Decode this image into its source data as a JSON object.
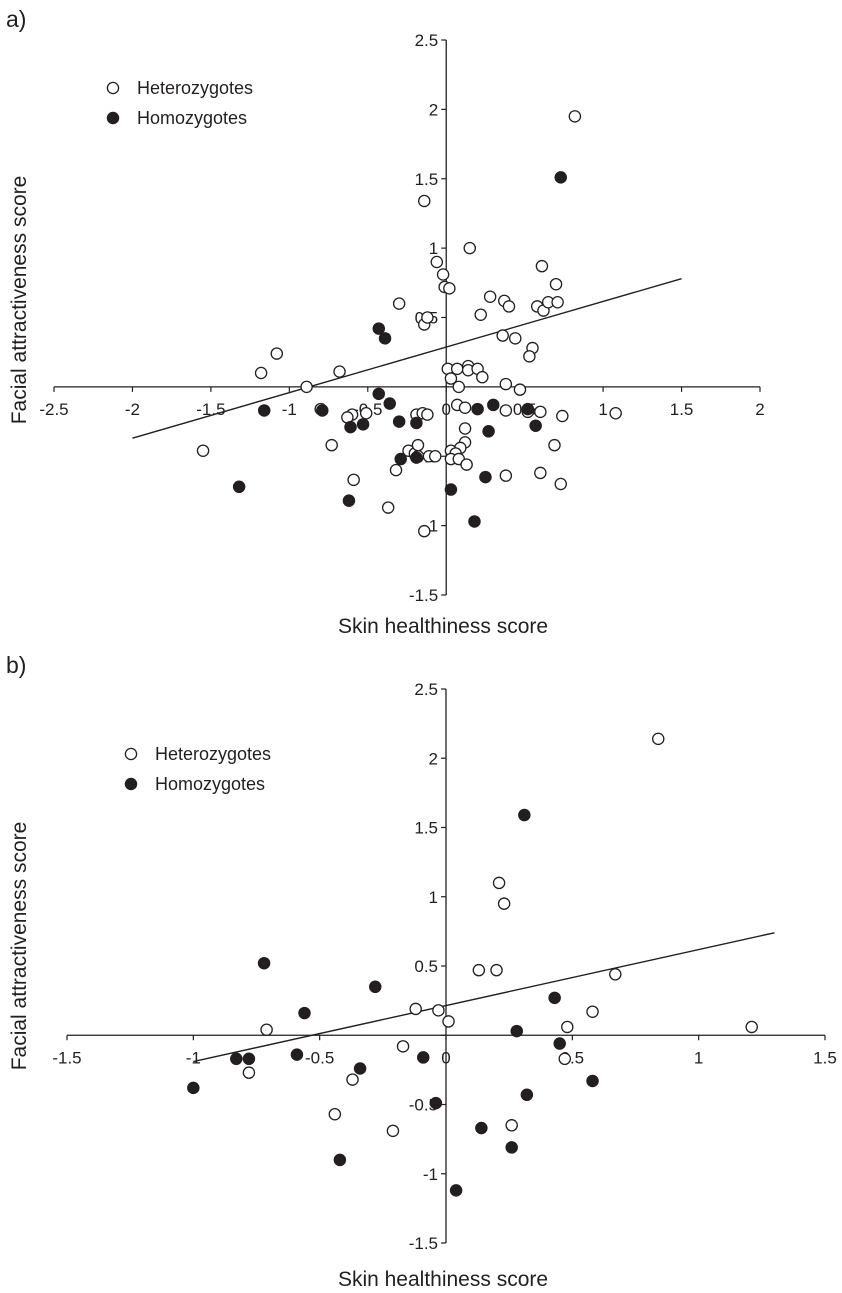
{
  "chart_data": [
    {
      "panel_label": "a)",
      "type": "scatter",
      "xlabel": "Skin healthiness score",
      "ylabel": "Facial attractiveness score",
      "xlim": [
        -2.5,
        2
      ],
      "ylim": [
        -1.5,
        2.5
      ],
      "x_ticks": [
        "-2.5",
        "-2",
        "-1.5",
        "-1",
        "-0.5",
        "0",
        "0.5",
        "1",
        "1.5",
        "2"
      ],
      "y_ticks": [
        "2.5",
        "2",
        "1.5",
        "1",
        "0.5",
        "0",
        "-0.5",
        "-1",
        "-1.5"
      ],
      "x_tick_values": [
        -2.5,
        -2,
        -1.5,
        -1,
        -0.5,
        0,
        0.5,
        1,
        1.5,
        2
      ],
      "y_tick_values": [
        2.5,
        2,
        1.5,
        1,
        0.5,
        0,
        -0.5,
        -1,
        -1.5
      ],
      "grid": false,
      "legend_position": "top-left",
      "trendline": {
        "x": [
          -2,
          1.5
        ],
        "y": [
          -0.37,
          0.78
        ]
      },
      "series": [
        {
          "name": "Heterozygotes",
          "marker": "open-circle",
          "color": "#231f20",
          "points": [
            [
              0.82,
              1.95
            ],
            [
              -0.14,
              1.34
            ],
            [
              0.15,
              1.0
            ],
            [
              -0.06,
              0.9
            ],
            [
              -0.02,
              0.81
            ],
            [
              0.61,
              0.87
            ],
            [
              -0.01,
              0.72
            ],
            [
              0.02,
              0.71
            ],
            [
              0.7,
              0.74
            ],
            [
              -0.3,
              0.6
            ],
            [
              0.28,
              0.65
            ],
            [
              0.37,
              0.62
            ],
            [
              0.4,
              0.58
            ],
            [
              0.58,
              0.58
            ],
            [
              0.62,
              0.55
            ],
            [
              0.65,
              0.61
            ],
            [
              0.71,
              0.61
            ],
            [
              0.22,
              0.52
            ],
            [
              -0.14,
              0.45
            ],
            [
              -0.12,
              0.5
            ],
            [
              0.36,
              0.37
            ],
            [
              0.44,
              0.35
            ],
            [
              0.55,
              0.28
            ],
            [
              0.53,
              0.22
            ],
            [
              -1.08,
              0.24
            ],
            [
              -1.18,
              0.1
            ],
            [
              -0.68,
              0.11
            ],
            [
              0.01,
              0.13
            ],
            [
              0.07,
              0.13
            ],
            [
              0.14,
              0.15
            ],
            [
              0.14,
              0.12
            ],
            [
              0.2,
              0.13
            ],
            [
              0.23,
              0.07
            ],
            [
              0.03,
              0.06
            ],
            [
              0.08,
              0.0
            ],
            [
              0.38,
              0.02
            ],
            [
              0.47,
              -0.02
            ],
            [
              -0.89,
              0.0
            ],
            [
              0.07,
              -0.13
            ],
            [
              0.12,
              -0.15
            ],
            [
              0.38,
              -0.17
            ],
            [
              -0.8,
              -0.16
            ],
            [
              -0.51,
              -0.19
            ],
            [
              -0.6,
              -0.2
            ],
            [
              -0.63,
              -0.22
            ],
            [
              -0.19,
              -0.2
            ],
            [
              -0.15,
              -0.19
            ],
            [
              -0.12,
              -0.2
            ],
            [
              0.52,
              -0.18
            ],
            [
              0.6,
              -0.18
            ],
            [
              1.08,
              -0.19
            ],
            [
              0.74,
              -0.21
            ],
            [
              0.12,
              -0.3
            ],
            [
              -0.73,
              -0.42
            ],
            [
              0.12,
              -0.4
            ],
            [
              0.09,
              -0.44
            ],
            [
              0.69,
              -0.42
            ],
            [
              -0.24,
              -0.46
            ],
            [
              -0.2,
              -0.48
            ],
            [
              -0.18,
              -0.42
            ],
            [
              -0.18,
              -0.5
            ],
            [
              -0.11,
              -0.5
            ],
            [
              -0.07,
              -0.5
            ],
            [
              0.03,
              -0.46
            ],
            [
              0.06,
              -0.48
            ],
            [
              0.03,
              -0.52
            ],
            [
              0.08,
              -0.52
            ],
            [
              0.13,
              -0.56
            ],
            [
              -0.32,
              -0.6
            ],
            [
              -1.55,
              -0.46
            ],
            [
              -0.59,
              -0.67
            ],
            [
              0.38,
              -0.64
            ],
            [
              0.6,
              -0.62
            ],
            [
              0.73,
              -0.7
            ],
            [
              -0.37,
              -0.87
            ],
            [
              -0.14,
              -1.04
            ]
          ]
        },
        {
          "name": "Homozygotes",
          "marker": "filled-circle",
          "color": "#231f20",
          "points": [
            [
              0.73,
              1.51
            ],
            [
              -0.43,
              0.42
            ],
            [
              -0.39,
              0.35
            ],
            [
              -0.43,
              -0.05
            ],
            [
              -1.16,
              -0.17
            ],
            [
              -0.79,
              -0.17
            ],
            [
              -0.36,
              -0.12
            ],
            [
              -0.61,
              -0.29
            ],
            [
              -0.53,
              -0.27
            ],
            [
              -0.3,
              -0.25
            ],
            [
              -0.19,
              -0.26
            ],
            [
              0.2,
              -0.16
            ],
            [
              0.3,
              -0.13
            ],
            [
              0.52,
              -0.16
            ],
            [
              0.57,
              -0.28
            ],
            [
              0.27,
              -0.32
            ],
            [
              -0.29,
              -0.52
            ],
            [
              -0.19,
              -0.51
            ],
            [
              -0.62,
              -0.82
            ],
            [
              -1.32,
              -0.72
            ],
            [
              0.03,
              -0.74
            ],
            [
              0.25,
              -0.65
            ],
            [
              0.18,
              -0.97
            ]
          ]
        }
      ]
    },
    {
      "panel_label": "b)",
      "type": "scatter",
      "xlabel": "Skin healthiness score",
      "ylabel": "Facial attractiveness score",
      "xlim": [
        -1.5,
        1.5
      ],
      "ylim": [
        -1.5,
        2.5
      ],
      "x_ticks": [
        "-1.5",
        "-1",
        "-0.5",
        "0",
        "0.5",
        "1",
        "1.5"
      ],
      "y_ticks": [
        "2.5",
        "2",
        "1.5",
        "1",
        "0.5",
        "0",
        "-0.5",
        "-1",
        "-1.5"
      ],
      "x_tick_values": [
        -1.5,
        -1,
        -0.5,
        0,
        0.5,
        1,
        1.5
      ],
      "y_tick_values": [
        2.5,
        2,
        1.5,
        1,
        0.5,
        0,
        -0.5,
        -1,
        -1.5
      ],
      "grid": false,
      "legend_position": "top-left",
      "trendline": {
        "x": [
          -1,
          1.3
        ],
        "y": [
          -0.19,
          0.74
        ]
      },
      "series": [
        {
          "name": "Heterozygotes",
          "marker": "open-circle",
          "color": "#231f20",
          "points": [
            [
              0.84,
              2.14
            ],
            [
              0.21,
              1.1
            ],
            [
              0.23,
              0.95
            ],
            [
              0.13,
              0.47
            ],
            [
              0.2,
              0.47
            ],
            [
              0.67,
              0.44
            ],
            [
              -0.71,
              0.04
            ],
            [
              -0.12,
              0.19
            ],
            [
              -0.03,
              0.18
            ],
            [
              0.01,
              0.1
            ],
            [
              0.58,
              0.17
            ],
            [
              0.48,
              0.06
            ],
            [
              1.21,
              0.06
            ],
            [
              -0.17,
              -0.08
            ],
            [
              -0.78,
              -0.27
            ],
            [
              -0.37,
              -0.32
            ],
            [
              -0.44,
              -0.57
            ],
            [
              -0.21,
              -0.69
            ],
            [
              0.26,
              -0.65
            ],
            [
              0.47,
              -0.17
            ]
          ]
        },
        {
          "name": "Homozygotes",
          "marker": "filled-circle",
          "color": "#231f20",
          "points": [
            [
              0.31,
              1.59
            ],
            [
              -0.72,
              0.52
            ],
            [
              -0.56,
              0.16
            ],
            [
              -0.28,
              0.35
            ],
            [
              0.43,
              0.27
            ],
            [
              0.28,
              0.03
            ],
            [
              0.45,
              -0.06
            ],
            [
              -0.59,
              -0.14
            ],
            [
              -0.83,
              -0.17
            ],
            [
              -0.78,
              -0.17
            ],
            [
              -0.34,
              -0.24
            ],
            [
              -0.09,
              -0.16
            ],
            [
              -1.0,
              -0.38
            ],
            [
              0.58,
              -0.33
            ],
            [
              0.32,
              -0.43
            ],
            [
              -0.04,
              -0.49
            ],
            [
              0.14,
              -0.67
            ],
            [
              0.26,
              -0.81
            ],
            [
              -0.42,
              -0.9
            ],
            [
              0.04,
              -1.12
            ]
          ]
        }
      ]
    }
  ]
}
